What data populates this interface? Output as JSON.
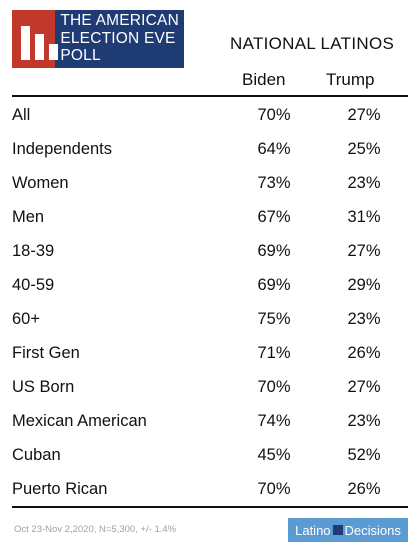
{
  "logo": {
    "lines": [
      "THE AMERICAN",
      "ELECTION EVE",
      "POLL"
    ]
  },
  "chart_data": {
    "type": "table",
    "title": "NATIONAL LATINOS",
    "columns": [
      "Biden",
      "Trump"
    ],
    "rows": [
      {
        "label": "All",
        "values": [
          "70%",
          "27%"
        ]
      },
      {
        "label": "Independents",
        "values": [
          "64%",
          "25%"
        ]
      },
      {
        "label": "Women",
        "values": [
          "73%",
          "23%"
        ]
      },
      {
        "label": "Men",
        "values": [
          "67%",
          "31%"
        ]
      },
      {
        "label": "18-39",
        "values": [
          "69%",
          "27%"
        ]
      },
      {
        "label": "40-59",
        "values": [
          "69%",
          "29%"
        ]
      },
      {
        "label": "60+",
        "values": [
          "75%",
          "23%"
        ]
      },
      {
        "label": "First Gen",
        "values": [
          "71%",
          "26%"
        ]
      },
      {
        "label": "US Born",
        "values": [
          "70%",
          "27%"
        ]
      },
      {
        "label": "Mexican American",
        "values": [
          "74%",
          "23%"
        ]
      },
      {
        "label": "Cuban",
        "values": [
          "45%",
          "52%"
        ]
      },
      {
        "label": "Puerto Rican",
        "values": [
          "70%",
          "26%"
        ]
      }
    ]
  },
  "footer": {
    "note": "Oct 23-Nov 2,2020, N=5,300, +/- 1.4%"
  },
  "brand": {
    "part1": "Latino",
    "part2": "Decisions"
  }
}
